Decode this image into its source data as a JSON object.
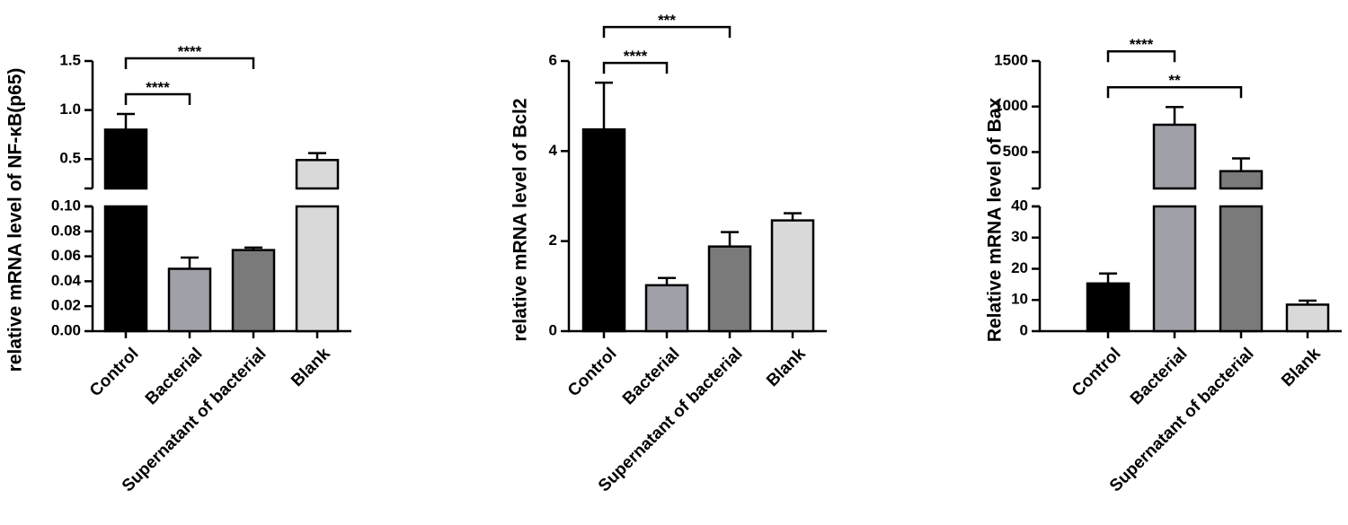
{
  "chart_data": [
    {
      "type": "bar",
      "y_label": "relative mRNA level of NF-κB(p65)",
      "categories": [
        "Control",
        "Bacterial",
        "Supernatant of bacterial",
        "Blank"
      ],
      "values": [
        0.8,
        0.05,
        0.065,
        0.49
      ],
      "errors": [
        0.16,
        0.009,
        0.002,
        0.07
      ],
      "colors": [
        "#000000",
        "#a0a0a8",
        "#7a7a7a",
        "#d9d9d9"
      ],
      "ylim": [
        0,
        0.1
      ],
      "yticks": [
        {
          "value": 0,
          "label": "0.00"
        },
        0.02,
        0.04,
        0.06,
        0.08,
        {
          "value": 0.1,
          "label": "0.10"
        }
      ],
      "y_break": {
        "ylim": [
          0.2,
          1.5
        ],
        "yticks": [
          0.5,
          {
            "value": 1,
            "label": "1.0"
          },
          1.5
        ]
      },
      "comparisons": [
        {
          "label": "****",
          "groups": [
            "Control",
            "Bacterial"
          ]
        },
        {
          "label": "****",
          "groups": [
            "Control",
            "Supernatant of bacterial"
          ]
        }
      ]
    },
    {
      "type": "bar",
      "y_label": "relative mRNA level of Bcl2",
      "categories": [
        "Control",
        "Bacterial",
        "Supernatant of bacterial",
        "Blank"
      ],
      "values": [
        4.48,
        1.02,
        1.88,
        2.46
      ],
      "errors": [
        1.04,
        0.16,
        0.32,
        0.16
      ],
      "colors": [
        "#000000",
        "#a0a0a8",
        "#7a7a7a",
        "#d9d9d9"
      ],
      "ylim": [
        0,
        6
      ],
      "yticks": [
        0,
        2,
        4,
        6
      ],
      "comparisons": [
        {
          "label": "****",
          "groups": [
            "Control",
            "Bacterial"
          ]
        },
        {
          "label": "***",
          "groups": [
            "Control",
            "Supernatant of bacterial"
          ]
        }
      ]
    },
    {
      "type": "bar",
      "y_label": "Relative mRNA level of Bax",
      "categories": [
        "Control",
        "Bacterial",
        "Supernatant of bacterial",
        "Blank"
      ],
      "values": [
        15.3,
        800,
        290,
        8.5
      ],
      "errors": [
        3.2,
        195,
        140,
        1.3
      ],
      "colors": [
        "#000000",
        "#a0a0a8",
        "#7a7a7a",
        "#d9d9d9"
      ],
      "ylim": [
        0,
        40
      ],
      "yticks": [
        0,
        10,
        20,
        30,
        40
      ],
      "y_break": {
        "ylim": [
          100,
          1500
        ],
        "yticks": [
          500,
          1000,
          1500
        ]
      },
      "comparisons": [
        {
          "label": "**",
          "groups": [
            "Control",
            "Supernatant of bacterial"
          ]
        },
        {
          "label": "****",
          "groups": [
            "Control",
            "Bacterial"
          ]
        }
      ]
    }
  ]
}
